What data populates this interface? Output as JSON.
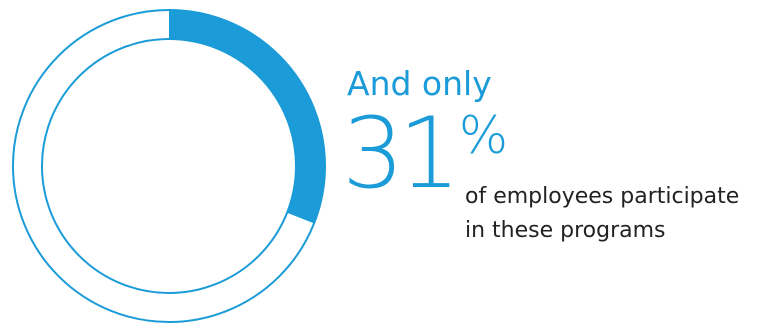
{
  "chart_data": {
    "type": "pie",
    "style": "donut",
    "values": [
      31,
      69
    ],
    "total": 100,
    "colors": {
      "fill": "#1b9bd7",
      "outline": "#1b9bd7",
      "background": "#ffffff"
    },
    "grid": false,
    "legend": "none"
  },
  "callout": {
    "lead": "And only",
    "value": "31",
    "unit": "%",
    "caption_line1": "of employees participate",
    "caption_line2": "in these programs"
  }
}
